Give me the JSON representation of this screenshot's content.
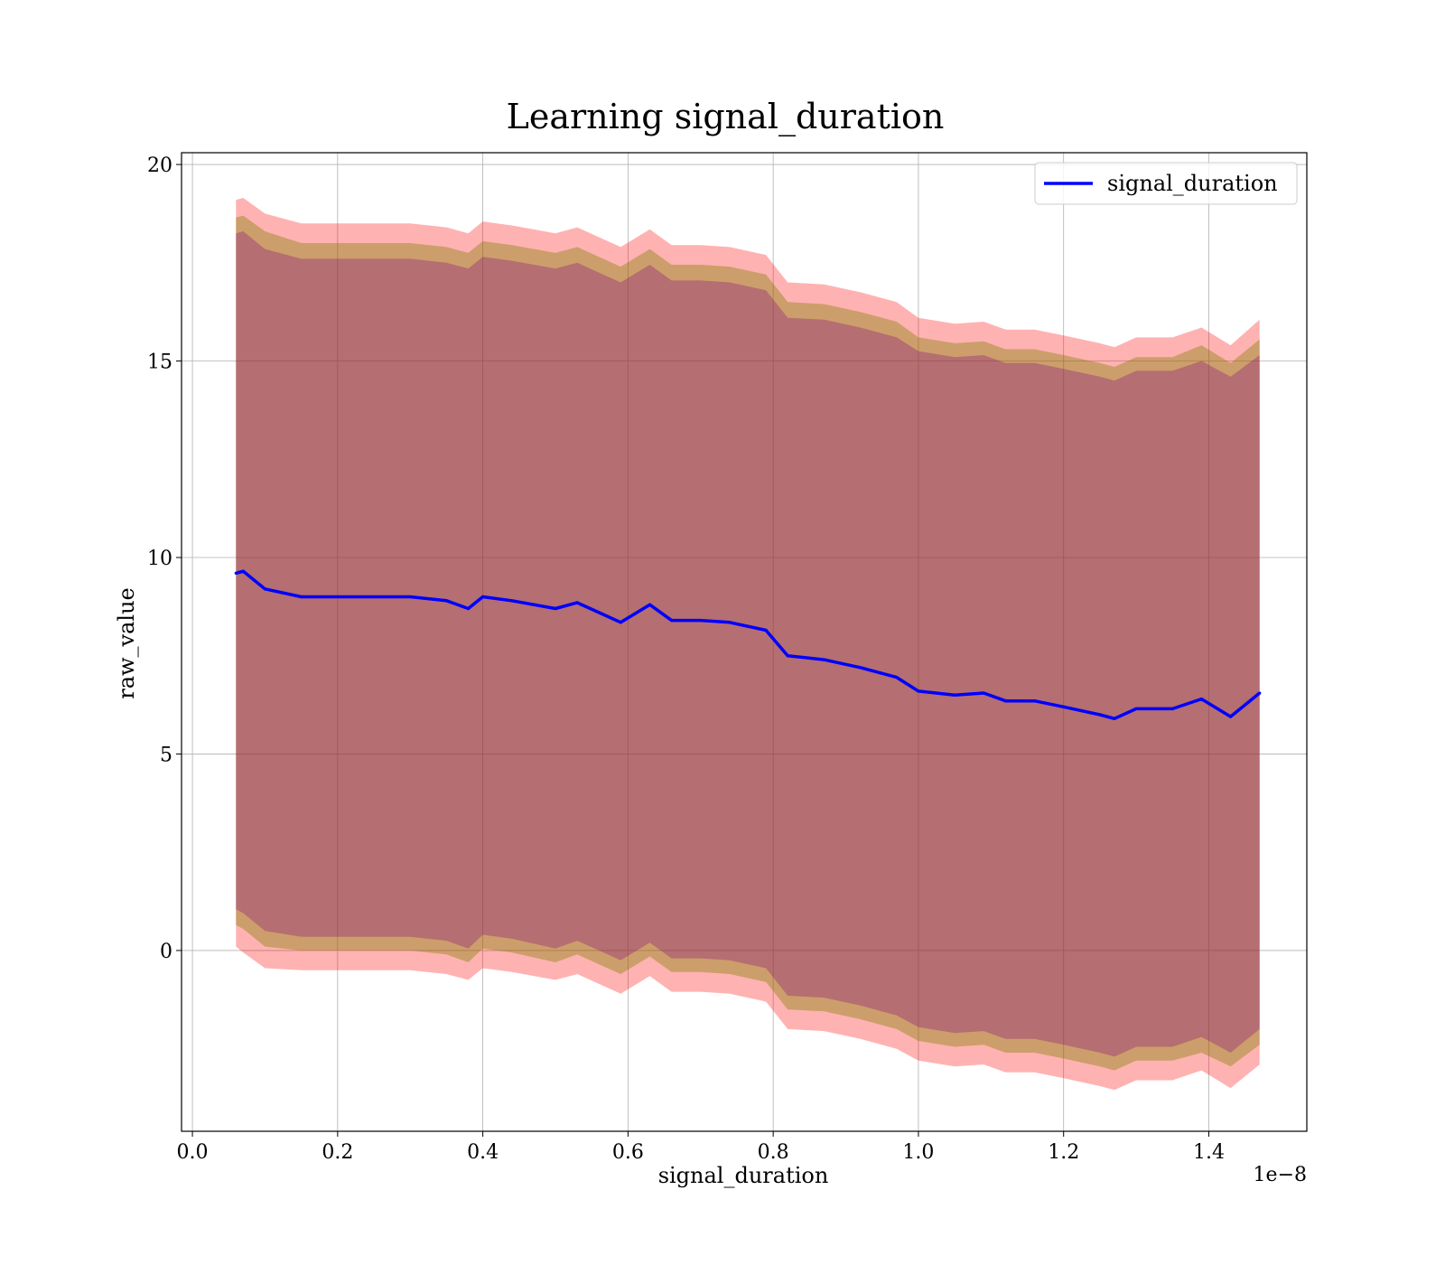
{
  "chart_data": {
    "type": "line",
    "title": "Learning signal_duration",
    "xlabel": "signal_duration",
    "ylabel": "raw_value",
    "x_offset_label": "1e−8",
    "xlim": [
      -0.015,
      1.535
    ],
    "ylim": [
      -4.6,
      20.3
    ],
    "xticks": [
      0.0,
      0.2,
      0.4,
      0.6,
      0.8,
      1.0,
      1.2,
      1.4
    ],
    "xtick_labels": [
      "0.0",
      "0.2",
      "0.4",
      "0.6",
      "0.8",
      "1.0",
      "1.2",
      "1.4"
    ],
    "yticks": [
      0,
      5,
      10,
      15,
      20
    ],
    "ytick_labels": [
      "0",
      "5",
      "10",
      "15",
      "20"
    ],
    "grid": true,
    "legend_position": "top-right",
    "x": [
      0.06,
      0.07,
      0.1,
      0.15,
      0.2,
      0.25,
      0.3,
      0.35,
      0.38,
      0.4,
      0.44,
      0.5,
      0.53,
      0.56,
      0.59,
      0.63,
      0.66,
      0.7,
      0.74,
      0.79,
      0.82,
      0.87,
      0.92,
      0.97,
      1.0,
      1.05,
      1.09,
      1.12,
      1.16,
      1.2,
      1.25,
      1.27,
      1.3,
      1.35,
      1.39,
      1.43,
      1.47
    ],
    "series": [
      {
        "name": "signal_duration",
        "color": "#0000ff",
        "values": [
          9.6,
          9.65,
          9.2,
          9.0,
          9.0,
          9.0,
          9.0,
          8.9,
          8.7,
          9.0,
          8.9,
          8.7,
          8.85,
          8.6,
          8.35,
          8.8,
          8.4,
          8.4,
          8.35,
          8.15,
          7.5,
          7.4,
          7.2,
          6.95,
          6.6,
          6.5,
          6.55,
          6.35,
          6.35,
          6.2,
          6.0,
          5.9,
          6.15,
          6.15,
          6.4,
          5.95,
          6.55
        ]
      }
    ],
    "bands": [
      {
        "color": "#ff0000",
        "opacity": 0.3,
        "lower": [
          0.1,
          -0.05,
          -0.45,
          -0.5,
          -0.5,
          -0.5,
          -0.5,
          -0.6,
          -0.75,
          -0.45,
          -0.55,
          -0.75,
          -0.6,
          -0.85,
          -1.1,
          -0.65,
          -1.05,
          -1.05,
          -1.1,
          -1.3,
          -2.0,
          -2.05,
          -2.25,
          -2.5,
          -2.8,
          -2.95,
          -2.9,
          -3.1,
          -3.1,
          -3.25,
          -3.45,
          -3.55,
          -3.3,
          -3.3,
          -3.05,
          -3.5,
          -2.9
        ],
        "upper": [
          19.1,
          19.15,
          18.75,
          18.5,
          18.5,
          18.5,
          18.5,
          18.4,
          18.25,
          18.55,
          18.45,
          18.25,
          18.4,
          18.15,
          17.9,
          18.35,
          17.95,
          17.95,
          17.9,
          17.7,
          17.0,
          16.95,
          16.75,
          16.5,
          16.1,
          15.95,
          16.0,
          15.8,
          15.8,
          15.65,
          15.45,
          15.35,
          15.6,
          15.6,
          15.85,
          15.4,
          16.05
        ]
      },
      {
        "color": "#808000",
        "opacity": 0.4,
        "lower": [
          0.65,
          0.55,
          0.1,
          0.0,
          0.0,
          0.0,
          0.0,
          -0.1,
          -0.3,
          0.05,
          -0.05,
          -0.3,
          -0.1,
          -0.35,
          -0.6,
          -0.15,
          -0.55,
          -0.55,
          -0.6,
          -0.8,
          -1.5,
          -1.55,
          -1.75,
          -2.0,
          -2.3,
          -2.45,
          -2.4,
          -2.6,
          -2.6,
          -2.75,
          -2.95,
          -3.05,
          -2.8,
          -2.8,
          -2.6,
          -2.95,
          -2.4
        ]
      },
      {
        "color": "#800080",
        "opacity": 0.3,
        "lower": [
          1.05,
          0.95,
          0.5,
          0.35,
          0.35,
          0.35,
          0.35,
          0.25,
          0.05,
          0.4,
          0.3,
          0.05,
          0.25,
          0.0,
          -0.25,
          0.2,
          -0.2,
          -0.2,
          -0.25,
          -0.45,
          -1.15,
          -1.2,
          -1.4,
          -1.65,
          -1.95,
          -2.1,
          -2.05,
          -2.25,
          -2.25,
          -2.4,
          -2.6,
          -2.7,
          -2.45,
          -2.45,
          -2.2,
          -2.6,
          -2.0
        ]
      }
    ],
    "band_uppers_mid": [
      18.65,
      18.7,
      18.3,
      18.0,
      18.0,
      18.0,
      18.0,
      17.9,
      17.75,
      18.05,
      17.95,
      17.75,
      17.9,
      17.65,
      17.4,
      17.85,
      17.45,
      17.45,
      17.4,
      17.2,
      16.5,
      16.45,
      16.25,
      16.0,
      15.6,
      15.45,
      15.5,
      15.3,
      15.3,
      15.15,
      14.95,
      14.85,
      15.1,
      15.1,
      15.4,
      14.95,
      15.55
    ],
    "band_uppers_inner": [
      18.25,
      18.3,
      17.85,
      17.6,
      17.6,
      17.6,
      17.6,
      17.5,
      17.35,
      17.65,
      17.55,
      17.35,
      17.5,
      17.25,
      17.0,
      17.45,
      17.05,
      17.05,
      17.0,
      16.8,
      16.1,
      16.05,
      15.85,
      15.6,
      15.25,
      15.1,
      15.15,
      14.95,
      14.95,
      14.8,
      14.6,
      14.5,
      14.75,
      14.75,
      15.0,
      14.6,
      15.15
    ]
  }
}
